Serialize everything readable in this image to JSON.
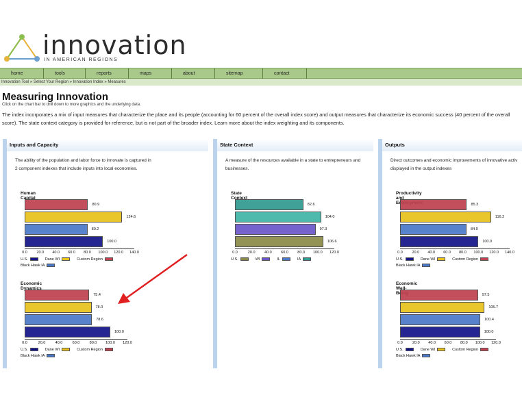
{
  "logo": {
    "word": "innovation",
    "subtitle": "IN AMERICAN REGIONS"
  },
  "nav": {
    "items": [
      "home",
      "tools",
      "reports",
      "maps",
      "about",
      "sitemap",
      "contact"
    ]
  },
  "breadcrumb": "Innovation Tool » Select Your Region » Innovation Index » Measures",
  "page": {
    "title": "Measuring Innovation",
    "click_note": "Click on the chart bar to drill down to more graphics and the underlying data.",
    "intro": "The index incorporates a mix of input measures that characterize the place and its people (accounting for 60 percent of the overall index score) and output measures that characterize its economic success (40 percent of the overall score). The state context category is provided for reference, but is not part of the broader index. Learn more about the index weighting and its components."
  },
  "colors": {
    "red": "#c0414f",
    "yellow": "#e8c21a",
    "blue": "#4a78c8",
    "navy": "#14148a",
    "teal": "#2f9a8f",
    "lightteal": "#3fb5a8",
    "purple": "#6a55c8",
    "olive": "#8a8a48"
  },
  "panels": [
    {
      "title": "Inputs and Capacity",
      "desc": "The ability of the population and labor force to innovate is captured in 2 component indexes that include inputs into local economies.",
      "charts": [
        {
          "title": "Human Capital",
          "values": [
            "80.9",
            "124.6",
            "80.2",
            "100.0"
          ],
          "ticks": [
            "0.0",
            "20.0",
            "40.0",
            "60.0",
            "80.0",
            "100.0",
            "120.0",
            "140.0"
          ],
          "legend": [
            "U.S.",
            "Dane WI",
            "Custom Region",
            "Black Hawk IA"
          ]
        },
        {
          "title": "Economic Dynamics",
          "values": [
            "75.4",
            "78.0",
            "78.6",
            "100.0"
          ],
          "ticks": [
            "0.0",
            "20.0",
            "40.0",
            "60.0",
            "80.0",
            "100.0",
            "120.0"
          ],
          "legend": [
            "U.S.",
            "Dane WI",
            "Custom Region",
            "Black Hawk IA"
          ]
        }
      ]
    },
    {
      "title": "State Context",
      "desc": "A measure of the resources available in a state to entrepreneurs and businesses.",
      "charts": [
        {
          "title": "State Context",
          "values": [
            "82.6",
            "104.0",
            "97.3",
            "106.6"
          ],
          "ticks": [
            "0.0",
            "20.0",
            "40.0",
            "60.0",
            "80.0",
            "100.0",
            "120.0"
          ],
          "legend": [
            "U.S.",
            "WI",
            "IL",
            "IA"
          ]
        }
      ]
    },
    {
      "title": "Outputs",
      "desc": "Direct outcomes and economic improvements of innovative activ displayed in the output indexes",
      "charts": [
        {
          "title": "Productivity and Employment",
          "values": [
            "85.3",
            "116.2",
            "84.9",
            "100.0"
          ],
          "ticks": [
            "0.0",
            "20.0",
            "40.0",
            "60.0",
            "80.0",
            "100.0",
            "120.0",
            "140.0"
          ],
          "legend": [
            "U.S.",
            "Dane WI",
            "Custom Region",
            "Black Hawk IA"
          ]
        },
        {
          "title": "Economic Well-Being",
          "values": [
            "97.5",
            "105.7",
            "100.4",
            "100.0"
          ],
          "ticks": [
            "0.0",
            "20.0",
            "40.0",
            "60.0",
            "80.0",
            "100.0",
            "120.0"
          ],
          "legend": [
            "U.S.",
            "Dane WI",
            "Custom Region",
            "Black Hawk IA"
          ]
        }
      ]
    }
  ],
  "chart_data": [
    {
      "type": "bar",
      "title": "Human Capital",
      "categories": [
        "Custom Region",
        "Dane WI",
        "Black Hawk IA",
        "U.S."
      ],
      "values": [
        80.9,
        124.6,
        80.2,
        100.0
      ],
      "xlim": [
        0,
        140
      ],
      "legend": "bottom"
    },
    {
      "type": "bar",
      "title": "Economic Dynamics",
      "categories": [
        "Custom Region",
        "Dane WI",
        "Black Hawk IA",
        "U.S."
      ],
      "values": [
        75.4,
        78.0,
        78.6,
        100.0
      ],
      "xlim": [
        0,
        120
      ],
      "legend": "bottom"
    },
    {
      "type": "bar",
      "title": "State Context",
      "categories": [
        "IA",
        "WI",
        "IL",
        "U.S."
      ],
      "values": [
        82.6,
        104.0,
        97.3,
        106.6
      ],
      "xlim": [
        0,
        120
      ],
      "legend": "bottom"
    },
    {
      "type": "bar",
      "title": "Productivity and Employment",
      "categories": [
        "Custom Region",
        "Dane WI",
        "Black Hawk IA",
        "U.S."
      ],
      "values": [
        85.3,
        116.2,
        84.9,
        100.0
      ],
      "xlim": [
        0,
        140
      ],
      "legend": "bottom"
    },
    {
      "type": "bar",
      "title": "Economic Well-Being",
      "categories": [
        "Custom Region",
        "Dane WI",
        "Black Hawk IA",
        "U.S."
      ],
      "values": [
        97.5,
        105.7,
        100.4,
        100.0
      ],
      "xlim": [
        0,
        120
      ],
      "legend": "bottom"
    }
  ]
}
